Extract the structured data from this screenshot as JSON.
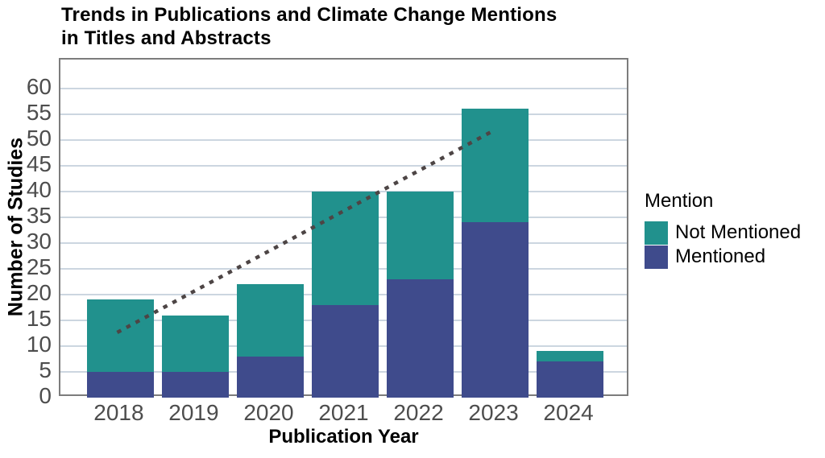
{
  "title": {
    "line1": "Trends in Publications and Climate Change Mentions",
    "line2": "in Titles and Abstracts"
  },
  "legend": {
    "title": "Mention",
    "items": [
      {
        "label": "Not Mentioned",
        "color": "#21918d"
      },
      {
        "label": "Mentioned",
        "color": "#3f4b8c"
      }
    ]
  },
  "chart_data": {
    "type": "bar",
    "stacked": true,
    "title": "Trends in Publications and Climate Change Mentions in Titles and Abstracts",
    "xlabel": "Publication Year",
    "ylabel": "Number of Studies",
    "categories": [
      "2018",
      "2019",
      "2020",
      "2021",
      "2022",
      "2023",
      "2024"
    ],
    "series": [
      {
        "name": "Mentioned",
        "color": "#3f4b8c",
        "values": [
          5,
          5,
          8,
          18,
          23,
          34,
          7
        ]
      },
      {
        "name": "Not Mentioned",
        "color": "#21918d",
        "values": [
          14,
          11,
          14,
          22,
          17,
          22,
          2
        ]
      }
    ],
    "totals": [
      19,
      16,
      22,
      40,
      40,
      56,
      9
    ],
    "ylim": [
      0,
      65.6
    ],
    "yticks": [
      0,
      5,
      10,
      15,
      20,
      25,
      30,
      35,
      40,
      45,
      50,
      55,
      60
    ],
    "grid": true,
    "legend_position": "right",
    "trend_line": {
      "style": "dotted",
      "color": "#4d4545",
      "x": [
        "2018",
        "2023"
      ],
      "y": [
        12.5,
        51.5
      ]
    },
    "colors": {
      "gridline": "#ccd6e0",
      "panel_border": "#7c7c7c",
      "tick_text": "#4d4d4d"
    }
  }
}
